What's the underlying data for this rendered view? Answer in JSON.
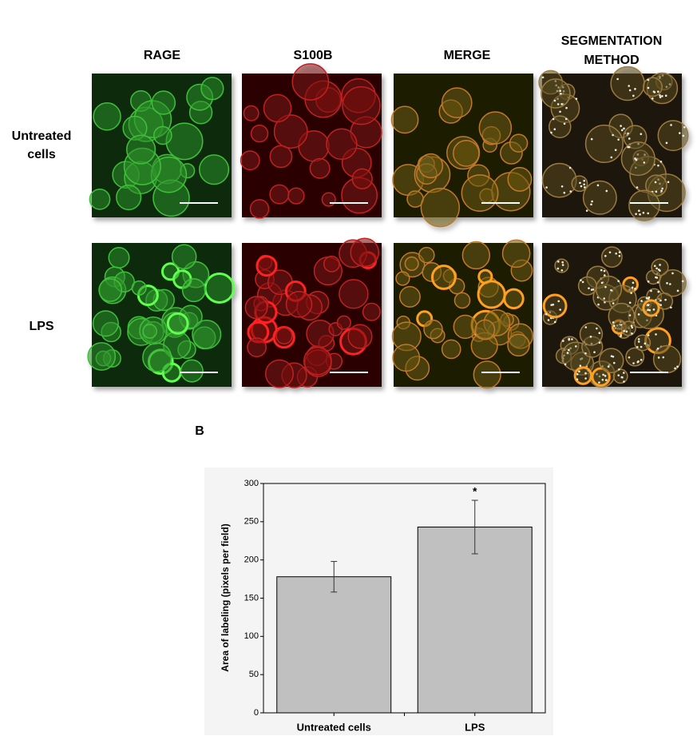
{
  "figure": {
    "column_headers": [
      "RAGE",
      "S100B",
      "MERGE",
      "SEGMENTATION METHOD"
    ],
    "row_labels": [
      "Untreated cells",
      "LPS"
    ],
    "panel_label": "B"
  },
  "chart_data": {
    "type": "bar",
    "ylabel": "Area of labeling (pixels per field)",
    "categories": [
      "Untreated cells",
      "LPS"
    ],
    "values": [
      178,
      243
    ],
    "errors": [
      20,
      35
    ],
    "annotations": [
      {
        "text": "*",
        "category": 1
      }
    ],
    "color": "#c0c0c0",
    "ylim": [
      0,
      300
    ],
    "yticks": [
      0,
      50,
      100,
      150,
      200,
      250,
      300
    ],
    "grid": false
  }
}
